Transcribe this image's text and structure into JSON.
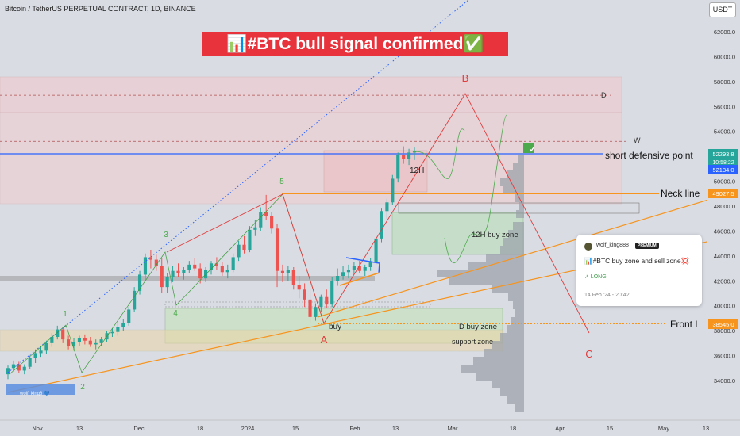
{
  "header": {
    "symbol": "Bitcoin / TetherUS PERPETUAL CONTRACT, 1D, BINANCE",
    "currency_button": "USDT"
  },
  "banner": {
    "text": "📊#BTC bull signal confirmed✅",
    "background": "#e8323c",
    "color": "#ffffff"
  },
  "colors": {
    "up": "#26a69a",
    "down": "#ef5350",
    "orange": "#f7941d",
    "blue_line": "#2962ff",
    "red_label": "#e23c3c",
    "green_label": "#5cb85c",
    "background": "#d9dce3"
  },
  "chart_data": {
    "type": "candlestick",
    "y_axis": {
      "min": 32000,
      "max": 64000,
      "ticks": [
        "34000.0",
        "36000.0",
        "38000.0",
        "40000.0",
        "42000.0",
        "44000.0",
        "46000.0",
        "48000.0",
        "50000.0",
        "52000.0",
        "54000.0",
        "56000.0",
        "58000.0",
        "60000.0",
        "62000.0"
      ]
    },
    "x_axis": {
      "ticks": [
        "Nov",
        "13",
        "Dec",
        "18",
        "2024",
        "15",
        "Feb",
        "13",
        "Mar",
        "18",
        "Apr",
        "15",
        "May",
        "13"
      ]
    },
    "candles": [
      [
        34500,
        35200,
        34100,
        35000
      ],
      [
        35000,
        35600,
        34700,
        35300
      ],
      [
        35300,
        35500,
        34600,
        34800
      ],
      [
        34800,
        35300,
        34500,
        35100
      ],
      [
        35100,
        36000,
        34900,
        35800
      ],
      [
        35800,
        36500,
        35400,
        36200
      ],
      [
        36200,
        36800,
        35900,
        36400
      ],
      [
        36400,
        37200,
        36100,
        37000
      ],
      [
        37000,
        37800,
        36700,
        37500
      ],
      [
        37500,
        38400,
        37300,
        38100
      ],
      [
        38100,
        38300,
        37000,
        37300
      ],
      [
        37300,
        37600,
        36500,
        36800
      ],
      [
        36800,
        37400,
        36400,
        37100
      ],
      [
        37100,
        37600,
        36800,
        37400
      ],
      [
        37400,
        37700,
        36900,
        37200
      ],
      [
        37200,
        37500,
        36700,
        36900
      ],
      [
        36900,
        37300,
        36500,
        37000
      ],
      [
        37000,
        37500,
        36800,
        37300
      ],
      [
        37300,
        38000,
        37100,
        37800
      ],
      [
        37800,
        38200,
        37500,
        37900
      ],
      [
        37900,
        38600,
        37600,
        38300
      ],
      [
        38300,
        38900,
        38000,
        38600
      ],
      [
        38600,
        39900,
        38400,
        39700
      ],
      [
        39700,
        41500,
        39500,
        41200
      ],
      [
        41200,
        42800,
        40900,
        42500
      ],
      [
        42500,
        44200,
        42100,
        43900
      ],
      [
        43900,
        44500,
        43000,
        43700
      ],
      [
        43700,
        44100,
        42800,
        43200
      ],
      [
        43200,
        43800,
        41000,
        41500
      ],
      [
        41500,
        42600,
        41000,
        42300
      ],
      [
        42300,
        43200,
        41900,
        42800
      ],
      [
        42800,
        43400,
        42300,
        42600
      ],
      [
        42600,
        43100,
        42100,
        42900
      ],
      [
        42900,
        43600,
        42600,
        43300
      ],
      [
        43300,
        43800,
        42800,
        43000
      ],
      [
        43000,
        43400,
        41800,
        42200
      ],
      [
        42200,
        43100,
        41900,
        42900
      ],
      [
        42900,
        43600,
        42500,
        43400
      ],
      [
        43400,
        43900,
        42900,
        43200
      ],
      [
        43200,
        43500,
        42400,
        42700
      ],
      [
        42700,
        43300,
        42200,
        42900
      ],
      [
        42900,
        44200,
        42700,
        43900
      ],
      [
        43900,
        45200,
        43600,
        44900
      ],
      [
        44900,
        45600,
        44200,
        44500
      ],
      [
        44500,
        46400,
        44300,
        46100
      ],
      [
        46100,
        46900,
        45600,
        46300
      ],
      [
        46300,
        47900,
        46000,
        47500
      ],
      [
        47500,
        48900,
        46900,
        47200
      ],
      [
        47200,
        47500,
        45800,
        46200
      ],
      [
        46200,
        46600,
        41500,
        42800
      ],
      [
        42800,
        43300,
        41900,
        42600
      ],
      [
        42600,
        43200,
        42000,
        42900
      ],
      [
        42900,
        43100,
        41300,
        41700
      ],
      [
        41700,
        42400,
        40600,
        41300
      ],
      [
        41300,
        41800,
        39900,
        40500
      ],
      [
        40500,
        41300,
        38600,
        39100
      ],
      [
        39100,
        40200,
        38800,
        39900
      ],
      [
        39900,
        40900,
        39500,
        40700
      ],
      [
        40700,
        41300,
        39800,
        40100
      ],
      [
        40100,
        42300,
        39900,
        42000
      ],
      [
        42000,
        43000,
        41600,
        42400
      ],
      [
        42400,
        43200,
        42100,
        42700
      ],
      [
        42700,
        43300,
        42200,
        42900
      ],
      [
        42900,
        43500,
        42500,
        43200
      ],
      [
        43200,
        43600,
        42600,
        42800
      ],
      [
        42800,
        43300,
        42400,
        43100
      ],
      [
        43100,
        43800,
        42800,
        43500
      ],
      [
        43500,
        45600,
        43300,
        45400
      ],
      [
        45400,
        47800,
        45100,
        47600
      ],
      [
        47600,
        48600,
        47000,
        48300
      ],
      [
        48300,
        50500,
        48100,
        50200
      ],
      [
        50200,
        52300,
        49900,
        52100
      ],
      [
        52100,
        52800,
        51400,
        51800
      ],
      [
        51800,
        52600,
        51300,
        52300
      ],
      [
        52300,
        52700,
        51700,
        52400
      ]
    ],
    "price_labels": [
      {
        "text": "52293.8",
        "sub": "10:58:22",
        "color": "#26a69a"
      },
      {
        "text": "52134.0",
        "color": "#2962ff"
      },
      {
        "text": "49027.5",
        "color": "#f7941d"
      },
      {
        "text": "38545.0",
        "color": "#f7941d"
      }
    ],
    "levels": {
      "short_defensive": 52200,
      "neck": 49000,
      "front": 38550,
      "upper_dashed": 56900,
      "w_dashed": 53200
    },
    "annotations": {
      "short_defensive": "short defensive point",
      "neck": "Neck line",
      "front": "Front L",
      "d_top": "D",
      "w": "W",
      "twelve_h": "12H",
      "twelve_h_zone": "12H buy zone",
      "d_zone": "D buy zone",
      "support": "support zone",
      "buy": "buy",
      "wave_labels": [
        "1",
        "2",
        "3",
        "4",
        "5"
      ],
      "abc": [
        "A",
        "B",
        "C"
      ],
      "check": "✓"
    }
  },
  "idea_card": {
    "author": "wolf_king888",
    "badge": "PREMIUM",
    "title": "📊#BTC buy zone and sell zone💢",
    "tag": "↗ LONG",
    "date": "14 Feb '24 - 20:42"
  },
  "watermark": "wolf_king8 💙"
}
